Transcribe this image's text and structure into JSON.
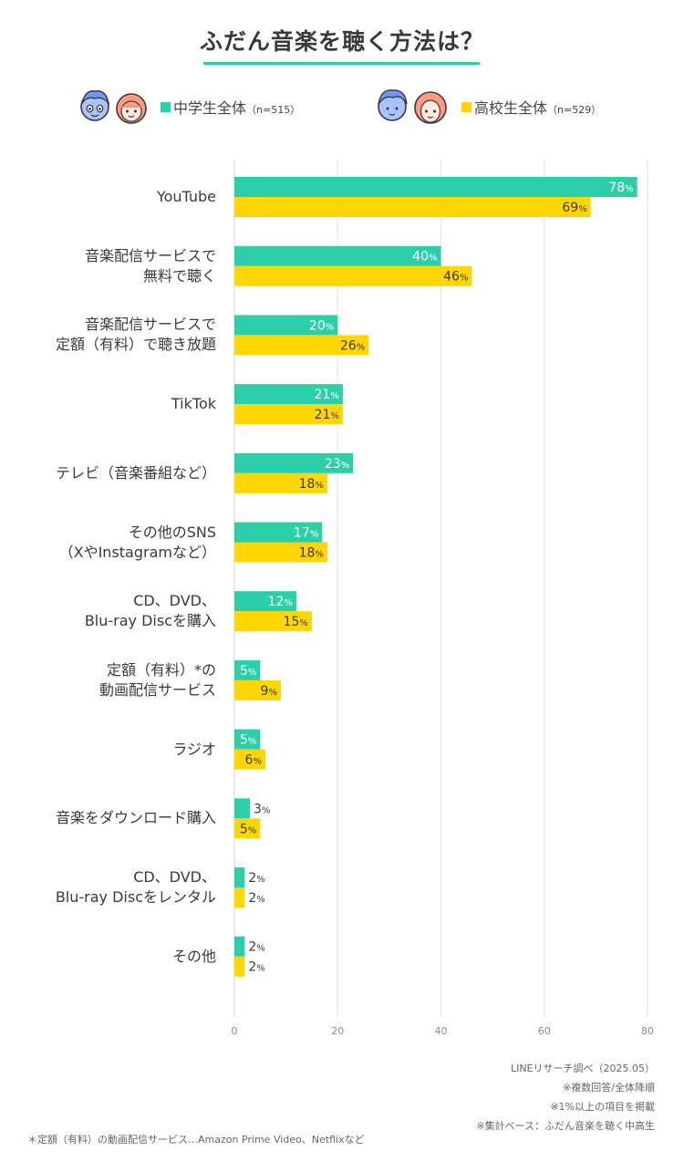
{
  "title": "ふだん音楽を聴く方法は？",
  "legend": {
    "junior": {
      "label": "中学生全体",
      "n": "（n=515）"
    },
    "senior": {
      "label": "高校生全体",
      "n": "（n=529）"
    }
  },
  "colors": {
    "junior": "#2ccfa9",
    "senior": "#ffd600",
    "accent": "#2ccfa9",
    "grid": "#e6e6e6"
  },
  "chart_data": {
    "type": "bar",
    "orientation": "horizontal",
    "title": "ふだん音楽を聴く方法は？",
    "categories": [
      [
        "YouTube"
      ],
      [
        "音楽配信サービスで",
        "無料で聴く"
      ],
      [
        "音楽配信サービスで",
        "定額（有料）で聴き放題"
      ],
      [
        "TikTok"
      ],
      [
        "テレビ（音楽番組など）"
      ],
      [
        "その他のSNS",
        "（XやInstagramなど）"
      ],
      [
        "CD、DVD、",
        "Blu-ray Discを購入"
      ],
      [
        "定額（有料）*の",
        "動画配信サービス"
      ],
      [
        "ラジオ"
      ],
      [
        "音楽をダウンロード購入"
      ],
      [
        "CD、DVD、",
        "Blu-ray Discをレンタル"
      ],
      [
        "その他"
      ]
    ],
    "series": [
      {
        "name": "中学生全体",
        "values": [
          78,
          40,
          20,
          21,
          23,
          17,
          12,
          5,
          5,
          3,
          2,
          2
        ]
      },
      {
        "name": "高校生全体",
        "values": [
          69,
          46,
          26,
          21,
          18,
          18,
          15,
          9,
          6,
          5,
          2,
          2
        ]
      }
    ],
    "value_suffix": "%",
    "xlim": [
      0,
      80
    ],
    "xticks": [
      "0",
      "20",
      "40",
      "60",
      "80"
    ],
    "grid": true,
    "legend_position": "top"
  },
  "source_notes": [
    "LINEリサーチ調べ（2025.05）",
    "※複数回答/全体降順",
    "※1%以上の項目を掲載",
    "※集計ベース：ふだん音楽を聴く中高生"
  ],
  "footnote": "＊定額（有料）の動画配信サービス…Amazon Prime Video、Netflixなど"
}
